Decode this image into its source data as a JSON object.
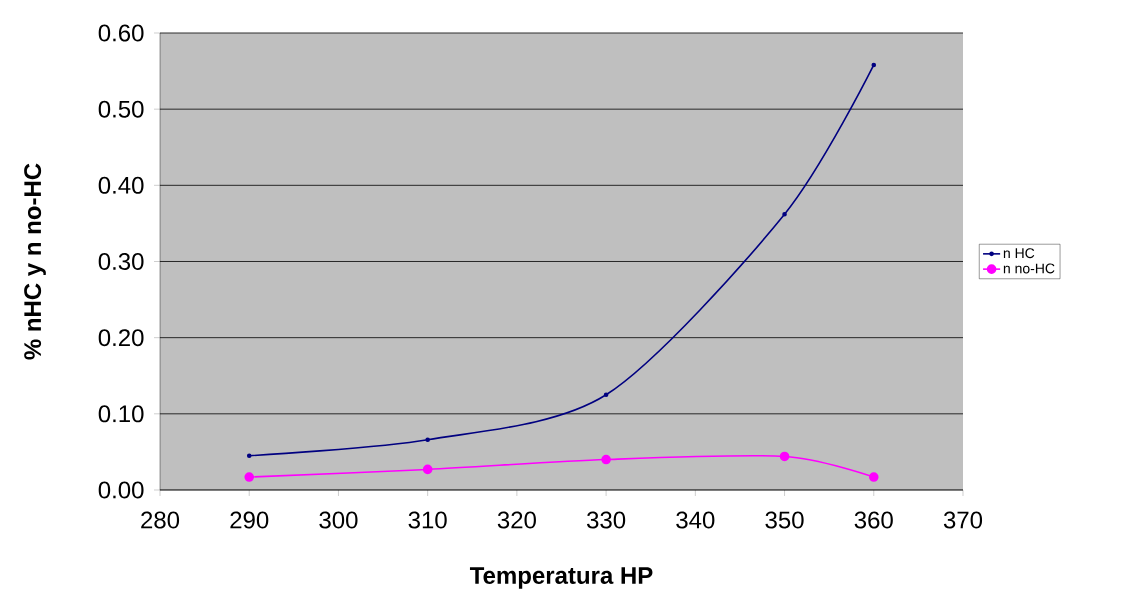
{
  "chart_data": {
    "type": "line",
    "xlabel": "Temperatura HP",
    "ylabel": "% nHC y n no-HC",
    "series": [
      {
        "name": "n HC",
        "color": "#000080",
        "x": [
          290,
          310,
          330,
          350,
          360
        ],
        "values": [
          0.045,
          0.066,
          0.125,
          0.362,
          0.558
        ]
      },
      {
        "name": "n no-HC",
        "color": "#ff00ff",
        "x": [
          290,
          310,
          330,
          350,
          360
        ],
        "values": [
          0.017,
          0.027,
          0.04,
          0.044,
          0.017
        ]
      }
    ],
    "xlim": [
      280,
      370
    ],
    "xticks": [
      280,
      290,
      300,
      310,
      320,
      330,
      340,
      350,
      360,
      370
    ],
    "ylim": [
      0,
      0.6
    ],
    "yticks": [
      {
        "value": 0,
        "label": "0.00"
      },
      {
        "value": 0.1,
        "label": "0.10"
      },
      {
        "value": 0.2,
        "label": "0.20"
      },
      {
        "value": 0.3,
        "label": "0.30"
      },
      {
        "value": 0.4,
        "label": "0.40"
      },
      {
        "value": 0.5,
        "label": "0.50"
      },
      {
        "value": 0.6,
        "label": "0.60"
      }
    ],
    "grid": "y",
    "legend": "right",
    "marker": "circle",
    "line_style": "solid"
  }
}
